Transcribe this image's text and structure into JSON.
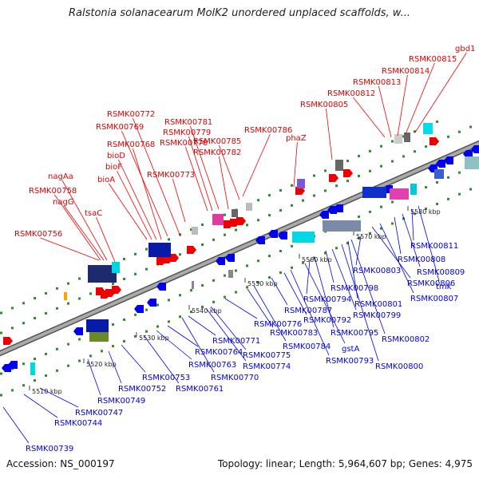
{
  "title": "Ralstonia solanacearum MolK2 unordered unplaced scaffolds, w...",
  "footer": {
    "accession": "Accession: NS_000197",
    "summary": "Topology: linear; Length: 5,964,607 bp; Genes: 4,975"
  },
  "colors": {
    "forward": "#ee0000",
    "reverse": "#0000ee",
    "backbone": "#777777",
    "dots": "#2e8b2e"
  },
  "ticks": [
    "5510 kbp",
    "5520 kbp",
    "5530 kbp",
    "5540 kbp",
    "5550 kbp",
    "5560 kbp",
    "5570 kbp",
    "5580 kbp"
  ],
  "forward_labels": [
    "RSMK00756",
    "RSMK00758",
    "nagG",
    "nagAa",
    "tsaC",
    "bioA",
    "bioF",
    "bioD",
    "RSMK00768",
    "RSMK00769",
    "RSMK00772",
    "RSMK00773",
    "RSMK00778",
    "RSMK00779",
    "RSMK00781",
    "RSMK00782",
    "RSMK00785",
    "RSMK00786",
    "phaZ",
    "RSMK00805",
    "RSMK00812",
    "RSMK00813",
    "RSMK00814",
    "RSMK00815",
    "gbd1"
  ],
  "reverse_labels": [
    "RSMK00739",
    "RSMK00744",
    "RSMK00747",
    "RSMK00749",
    "RSMK00752",
    "RSMK00753",
    "RSMK00761",
    "RSMK00763",
    "RSMK00764",
    "RSMK00770",
    "RSMK00771",
    "RSMK00774",
    "RSMK00775",
    "RSMK00776",
    "RSMK00783",
    "RSMK00784",
    "RSMK00787",
    "RSMK00792",
    "RSMK00793",
    "gstA",
    "RSMK00794",
    "RSMK00795",
    "RSMK00798",
    "RSMK00799",
    "RSMK00800",
    "RSMK00801",
    "RSMK00802",
    "RSMK00803",
    "RSMK00806",
    "RSMK00807",
    "RSMK00808",
    "RSMK00809",
    "RSMK00811",
    "tmk"
  ]
}
